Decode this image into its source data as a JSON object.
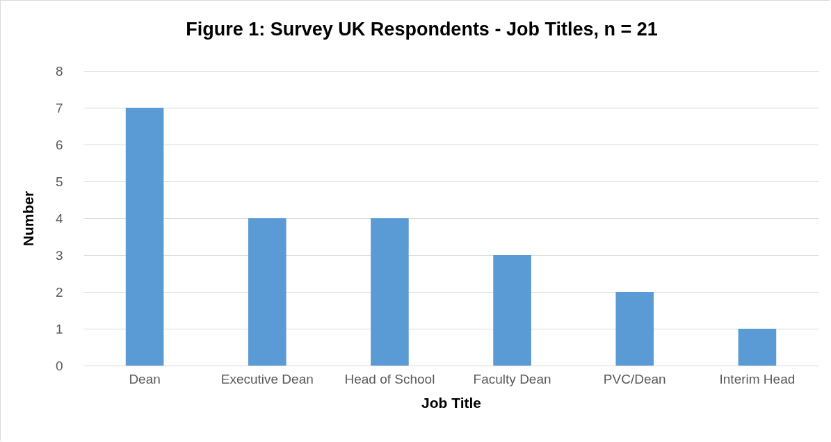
{
  "chart_data": {
    "type": "bar",
    "title": "Figure 1: Survey UK Respondents - Job Titles, n = 21",
    "xlabel": "Job Title",
    "ylabel": "Number",
    "categories": [
      "Dean",
      "Executive Dean",
      "Head of School",
      "Faculty Dean",
      "PVC/Dean",
      "Interim Head"
    ],
    "values": [
      7,
      4,
      4,
      3,
      2,
      1
    ],
    "color": "#5b9bd5",
    "ylim": [
      0,
      8
    ],
    "yticks": [
      0,
      1,
      2,
      3,
      4,
      5,
      6,
      7,
      8
    ],
    "grid": "y"
  }
}
